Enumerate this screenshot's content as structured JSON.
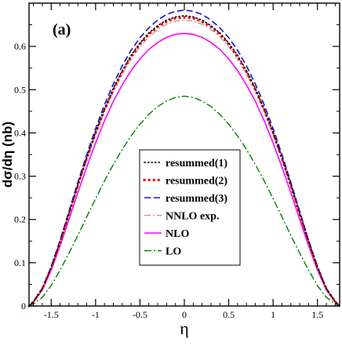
{
  "chart_data": {
    "type": "line",
    "panel_label": "(a)",
    "title": "",
    "xlabel": "η",
    "ylabel": "dσ/dη (nb)",
    "xlim": [
      -1.75,
      1.75
    ],
    "ylim": [
      0,
      0.7
    ],
    "x_ticks": [
      -1.5,
      -1,
      -0.5,
      0,
      0.5,
      1,
      1.5
    ],
    "x_tick_labels": [
      "-1.5",
      "-1",
      "-0.5",
      "0",
      "0.5",
      "1",
      "1.5"
    ],
    "y_ticks": [
      0,
      0.1,
      0.2,
      0.3,
      0.4,
      0.5,
      0.6
    ],
    "y_tick_labels": [
      "0",
      "0.1",
      "0.2",
      "0.3",
      "0.4",
      "0.5",
      "0.6"
    ],
    "grid": false,
    "legend_position": "center-right",
    "x": [
      -1.75,
      -1.7,
      -1.6,
      -1.5,
      -1.4,
      -1.3,
      -1.2,
      -1.1,
      -1.0,
      -0.9,
      -0.8,
      -0.7,
      -0.6,
      -0.5,
      -0.4,
      -0.3,
      -0.2,
      -0.1,
      0.0,
      0.1,
      0.2,
      0.3,
      0.4,
      0.5,
      0.6,
      0.7,
      0.8,
      0.9,
      1.0,
      1.1,
      1.2,
      1.3,
      1.4,
      1.5,
      1.6,
      1.7,
      1.75
    ],
    "series": [
      {
        "name": "resummed(1)",
        "color": "#000000",
        "dash": "dotted-black",
        "values": [
          0.0,
          0.01,
          0.04,
          0.089,
          0.149,
          0.214,
          0.28,
          0.343,
          0.402,
          0.455,
          0.503,
          0.544,
          0.579,
          0.608,
          0.631,
          0.648,
          0.661,
          0.668,
          0.671,
          0.668,
          0.661,
          0.648,
          0.631,
          0.608,
          0.579,
          0.544,
          0.503,
          0.455,
          0.402,
          0.343,
          0.28,
          0.214,
          0.149,
          0.089,
          0.04,
          0.01,
          0.0
        ]
      },
      {
        "name": "resummed(2)",
        "color": "#ff0000",
        "dash": "dotted-red",
        "values": [
          0.0,
          0.01,
          0.04,
          0.089,
          0.148,
          0.213,
          0.279,
          0.341,
          0.4,
          0.453,
          0.5,
          0.541,
          0.576,
          0.605,
          0.628,
          0.645,
          0.657,
          0.665,
          0.667,
          0.665,
          0.657,
          0.645,
          0.628,
          0.605,
          0.576,
          0.541,
          0.5,
          0.453,
          0.4,
          0.341,
          0.279,
          0.213,
          0.148,
          0.089,
          0.04,
          0.01,
          0.0
        ]
      },
      {
        "name": "resummed(3)",
        "color": "#1111dd",
        "dash": "dashed",
        "values": [
          0.0,
          0.01,
          0.041,
          0.091,
          0.152,
          0.219,
          0.286,
          0.35,
          0.41,
          0.465,
          0.513,
          0.555,
          0.591,
          0.62,
          0.643,
          0.661,
          0.674,
          0.681,
          0.684,
          0.681,
          0.674,
          0.661,
          0.643,
          0.62,
          0.591,
          0.555,
          0.513,
          0.465,
          0.41,
          0.35,
          0.286,
          0.219,
          0.152,
          0.091,
          0.041,
          0.01,
          0.0
        ]
      },
      {
        "name": "NNLO exp.",
        "color": "#e08aa8",
        "dash": "dash-dot-pink",
        "values": [
          0.0,
          0.01,
          0.039,
          0.088,
          0.147,
          0.211,
          0.276,
          0.338,
          0.396,
          0.449,
          0.496,
          0.536,
          0.571,
          0.599,
          0.622,
          0.639,
          0.651,
          0.658,
          0.661,
          0.658,
          0.651,
          0.639,
          0.622,
          0.599,
          0.571,
          0.536,
          0.496,
          0.449,
          0.396,
          0.338,
          0.276,
          0.211,
          0.147,
          0.088,
          0.039,
          0.01,
          0.0
        ]
      },
      {
        "name": "NLO",
        "color": "#ff00ff",
        "dash": "solid",
        "values": [
          0.0,
          0.009,
          0.037,
          0.083,
          0.139,
          0.2,
          0.262,
          0.321,
          0.377,
          0.428,
          0.473,
          0.511,
          0.544,
          0.571,
          0.593,
          0.609,
          0.621,
          0.628,
          0.63,
          0.628,
          0.621,
          0.609,
          0.593,
          0.571,
          0.544,
          0.511,
          0.473,
          0.428,
          0.377,
          0.321,
          0.262,
          0.2,
          0.139,
          0.083,
          0.037,
          0.009,
          0.0
        ]
      },
      {
        "name": "LO",
        "color": "#008000",
        "dash": "dash-dot-green",
        "values": [
          0.0,
          0.005,
          0.02,
          0.047,
          0.083,
          0.122,
          0.163,
          0.206,
          0.248,
          0.289,
          0.327,
          0.362,
          0.393,
          0.42,
          0.443,
          0.461,
          0.474,
          0.482,
          0.485,
          0.482,
          0.474,
          0.461,
          0.443,
          0.42,
          0.393,
          0.362,
          0.327,
          0.289,
          0.248,
          0.206,
          0.163,
          0.122,
          0.083,
          0.047,
          0.02,
          0.005,
          0.0
        ]
      }
    ]
  }
}
